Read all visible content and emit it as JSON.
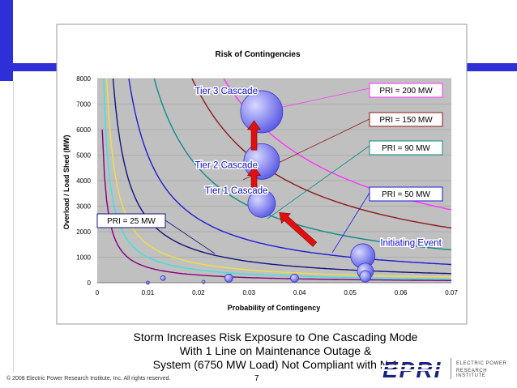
{
  "chart_data": {
    "type": "scatter",
    "title": "Risk of Contingencies",
    "xlabel": "Probability of Contingency",
    "ylabel": "Overload / Load Shed (MW)",
    "xlim": [
      0,
      0.07
    ],
    "ylim": [
      0,
      8000
    ],
    "x_ticks": [
      "0",
      "0.01",
      "0.02",
      "0.03",
      "0.04",
      "0.05",
      "0.06",
      "0.07"
    ],
    "y_ticks": [
      "0",
      "1000",
      "2000",
      "3000",
      "4000",
      "5000",
      "6000",
      "7000",
      "8000"
    ],
    "grid": "horizontal",
    "pri_curves": [
      {
        "label": "PRI = 200 MW",
        "pri": 200,
        "color": "#ff33ff"
      },
      {
        "label": "PRI = 150 MW",
        "pri": 150,
        "color": "#8b1a1a"
      },
      {
        "label": "PRI = 90 MW",
        "pri": 90,
        "color": "#0f8a8a"
      },
      {
        "label": "PRI = 50 MW",
        "pri": 50,
        "color": "#1c1cd4"
      },
      {
        "label": "PRI = 25 MW",
        "pri": 25,
        "color": "#14147a"
      },
      {
        "label": "",
        "pri": 15,
        "color": "#f0e040"
      },
      {
        "label": "",
        "pri": 10,
        "color": "#40e0e0"
      },
      {
        "label": "",
        "pri": 6,
        "color": "#800080"
      }
    ],
    "bubbles": [
      {
        "x": 0.0325,
        "y": 6700,
        "r": 26
      },
      {
        "x": 0.0325,
        "y": 4750,
        "r": 22
      },
      {
        "x": 0.0325,
        "y": 3100,
        "r": 17
      },
      {
        "x": 0.0525,
        "y": 1050,
        "r": 15
      },
      {
        "x": 0.053,
        "y": 450,
        "r": 10
      },
      {
        "x": 0.053,
        "y": 250,
        "r": 7
      },
      {
        "x": 0.026,
        "y": 180,
        "r": 5
      },
      {
        "x": 0.039,
        "y": 180,
        "r": 5
      },
      {
        "x": 0.013,
        "y": 180,
        "r": 3
      },
      {
        "x": 0.021,
        "y": 30,
        "r": 2
      },
      {
        "x": 0.01,
        "y": 0,
        "r": 2
      }
    ],
    "cascade_labels": [
      {
        "text": "Tier 3 Cascade",
        "x": 0.0255,
        "y": 7400
      },
      {
        "text": "Tier 2 Cascade",
        "x": 0.0255,
        "y": 4500
      },
      {
        "text": "Tier 1 Cascade",
        "x": 0.0275,
        "y": 3500
      },
      {
        "text": "Initiating Event",
        "x": 0.062,
        "y": 1450
      }
    ],
    "arrows": [
      {
        "from": [
          0.031,
          5200
        ],
        "to": [
          0.031,
          6350
        ]
      },
      {
        "from": [
          0.031,
          3550
        ],
        "to": [
          0.031,
          4550
        ]
      },
      {
        "from": [
          0.043,
          1500
        ],
        "to": [
          0.036,
          2750
        ]
      }
    ]
  },
  "captions": [
    "Storm Increases Risk Exposure to One Cascading Mode",
    "With 1 Line on Maintenance Outage &",
    "System (6750 MW Load) Not Compliant with N-1"
  ],
  "footer": {
    "copyright": "© 2008 Electric Power Research Institute, Inc. All rights reserved.",
    "page_number": "7"
  },
  "logo": {
    "mark": "EPRI",
    "line1": "ELECTRIC POWER",
    "line2": "RESEARCH INSTITUTE"
  }
}
